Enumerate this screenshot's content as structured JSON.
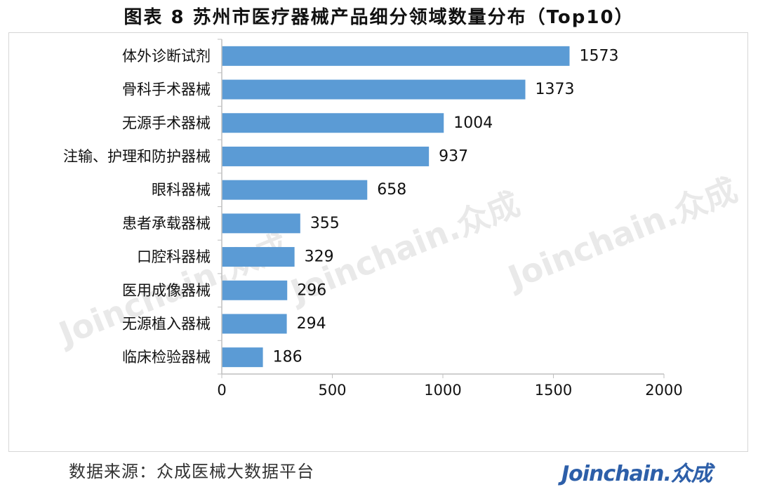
{
  "title": "图表 8   苏州市医疗器械产品细分领域数量分布（Top10）",
  "source": "数据来源：众成医械大数据平台",
  "brand": "Joinchain.众成",
  "watermark": "Joinchain.众成",
  "colors": {
    "bar": "#5b9bd5",
    "axis": "#bfbfbf"
  },
  "chart_data": {
    "type": "bar",
    "orientation": "horizontal",
    "categories": [
      "体外诊断试剂",
      "骨科手术器械",
      "无源手术器械",
      "注输、护理和防护器械",
      "眼科器械",
      "患者承载器械",
      "口腔科器械",
      "医用成像器械",
      "无源植入器械",
      "临床检验器械"
    ],
    "values": [
      1573,
      1373,
      1004,
      937,
      658,
      355,
      329,
      296,
      294,
      186
    ],
    "xlim": [
      0,
      2000
    ],
    "xticks": [
      0,
      500,
      1000,
      1500,
      2000
    ],
    "data_labels": true,
    "grid": false,
    "legend": "none"
  }
}
